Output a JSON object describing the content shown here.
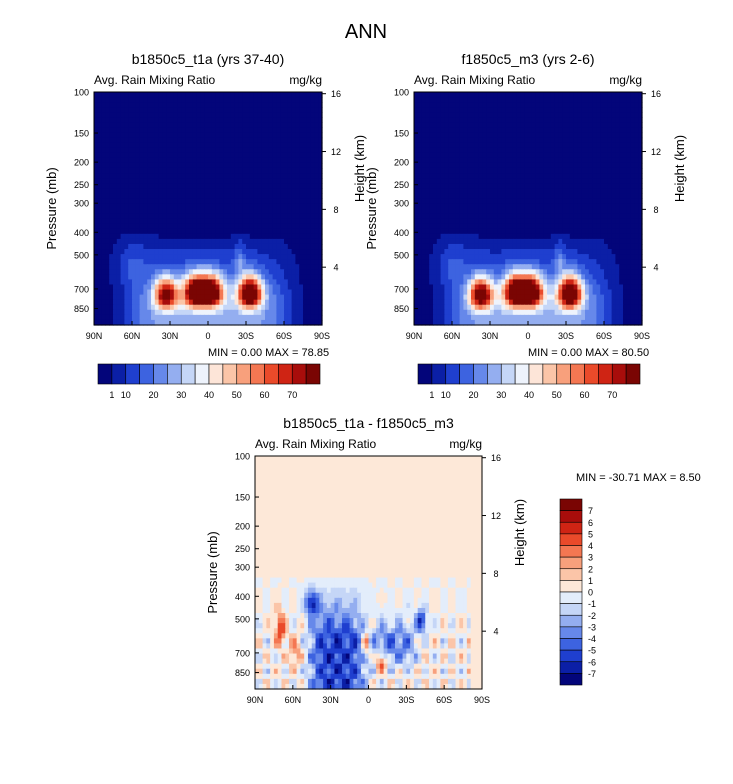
{
  "figure_title": "ANN",
  "colors": {
    "abs_scale": [
      "#03057a",
      "#0b1fa6",
      "#1f3fcf",
      "#3d63e0",
      "#6688ea",
      "#94aef0",
      "#c5d6f7",
      "#eef3fc",
      "#fde5d8",
      "#fbc5a8",
      "#f8a07c",
      "#f47752",
      "#ea4a2a",
      "#cf2414",
      "#a80d0b",
      "#7a0503"
    ],
    "diff_scale": [
      "#03057a",
      "#0b1fa6",
      "#1f3fcf",
      "#3d63e0",
      "#6688ea",
      "#94aef0",
      "#c5d6f7",
      "#e3edfb",
      "#fde8d8",
      "#fbc5a8",
      "#f8a07c",
      "#f47752",
      "#ea4a2a",
      "#cf2414",
      "#a80d0b",
      "#7a0503"
    ]
  },
  "chart_data": [
    {
      "type": "heatmap",
      "title": "b1850c5_t1a (yrs 37-40)",
      "left_label": "Avg. Rain Mixing Ratio",
      "units": "mg/kg",
      "ylabel": "Pressure (mb)",
      "y2label": "Height (km)",
      "x_ticks": [
        "90N",
        "60N",
        "30N",
        "0",
        "30S",
        "60S",
        "90S"
      ],
      "x_values": [
        90,
        60,
        30,
        0,
        -30,
        -60,
        -90
      ],
      "y_ticks": [
        "100",
        "150",
        "200",
        "250",
        "300",
        "400",
        "500",
        "700",
        "850"
      ],
      "y_values": [
        100,
        150,
        200,
        250,
        300,
        400,
        500,
        700,
        850
      ],
      "y2_ticks": [
        "16",
        "12",
        "8",
        "4"
      ],
      "y2_values": [
        16,
        12,
        8,
        4
      ],
      "ylim": [
        1000,
        100
      ],
      "stats": "MIN =   0.00   MAX =  78.85",
      "min": 0.0,
      "max": 78.85,
      "colorbar_ticks": [
        "1",
        "10",
        "20",
        "30",
        "40",
        "50",
        "60",
        "70"
      ],
      "levels": [
        1,
        5,
        10,
        15,
        20,
        25,
        30,
        35,
        40,
        45,
        50,
        55,
        60,
        65,
        70
      ],
      "features": [
        {
          "lat": 10,
          "p": 720,
          "value": 75
        },
        {
          "lat": -3,
          "p": 720,
          "value": 70
        },
        {
          "lat": -33,
          "p": 730,
          "value": 78
        },
        {
          "lat": 33,
          "p": 740,
          "value": 62
        }
      ]
    },
    {
      "type": "heatmap",
      "title": "f1850c5_m3 (yrs 2-6)",
      "left_label": "Avg. Rain Mixing Ratio",
      "units": "mg/kg",
      "ylabel": "Pressure (mb)",
      "y2label": "Height (km)",
      "x_ticks": [
        "90N",
        "60N",
        "30N",
        "0",
        "30S",
        "60S",
        "90S"
      ],
      "x_values": [
        90,
        60,
        30,
        0,
        -30,
        -60,
        -90
      ],
      "y_ticks": [
        "100",
        "150",
        "200",
        "250",
        "300",
        "400",
        "500",
        "700",
        "850"
      ],
      "y_values": [
        100,
        150,
        200,
        250,
        300,
        400,
        500,
        700,
        850
      ],
      "y2_ticks": [
        "16",
        "12",
        "8",
        "4"
      ],
      "y2_values": [
        16,
        12,
        8,
        4
      ],
      "ylim": [
        1000,
        100
      ],
      "stats": "MIN =   0.00   MAX =  80.50",
      "min": 0.0,
      "max": 80.5,
      "colorbar_ticks": [
        "1",
        "10",
        "20",
        "30",
        "40",
        "50",
        "60",
        "70"
      ],
      "levels": [
        1,
        5,
        10,
        15,
        20,
        25,
        30,
        35,
        40,
        45,
        50,
        55,
        60,
        65,
        70
      ],
      "features": [
        {
          "lat": 10,
          "p": 720,
          "value": 76
        },
        {
          "lat": -3,
          "p": 720,
          "value": 72
        },
        {
          "lat": -33,
          "p": 730,
          "value": 80
        },
        {
          "lat": 37,
          "p": 740,
          "value": 68
        }
      ]
    },
    {
      "type": "heatmap",
      "title": "b1850c5_t1a - f1850c5_m3",
      "left_label": "Avg. Rain Mixing Ratio",
      "units": "mg/kg",
      "ylabel": "Pressure (mb)",
      "y2label": "Height (km)",
      "x_ticks": [
        "90N",
        "60N",
        "30N",
        "0",
        "30S",
        "60S",
        "90S"
      ],
      "x_values": [
        90,
        60,
        30,
        0,
        -30,
        -60,
        -90
      ],
      "y_ticks": [
        "100",
        "150",
        "200",
        "250",
        "300",
        "400",
        "500",
        "700",
        "850"
      ],
      "y_values": [
        100,
        150,
        200,
        250,
        300,
        400,
        500,
        700,
        850
      ],
      "y2_ticks": [
        "16",
        "12",
        "8",
        "4"
      ],
      "y2_values": [
        16,
        12,
        8,
        4
      ],
      "ylim": [
        1000,
        100
      ],
      "stats": "MIN = -30.71   MAX =   8.50",
      "min": -30.71,
      "max": 8.5,
      "colorbar_ticks": [
        "7",
        "6",
        "5",
        "4",
        "3",
        "2",
        "1",
        "0",
        "-1",
        "-2",
        "-3",
        "-4",
        "-5",
        "-6",
        "-7"
      ],
      "levels": [
        -7,
        -6,
        -5,
        -4,
        -3,
        -2,
        -1,
        0,
        1,
        2,
        3,
        4,
        5,
        6,
        7
      ]
    }
  ]
}
